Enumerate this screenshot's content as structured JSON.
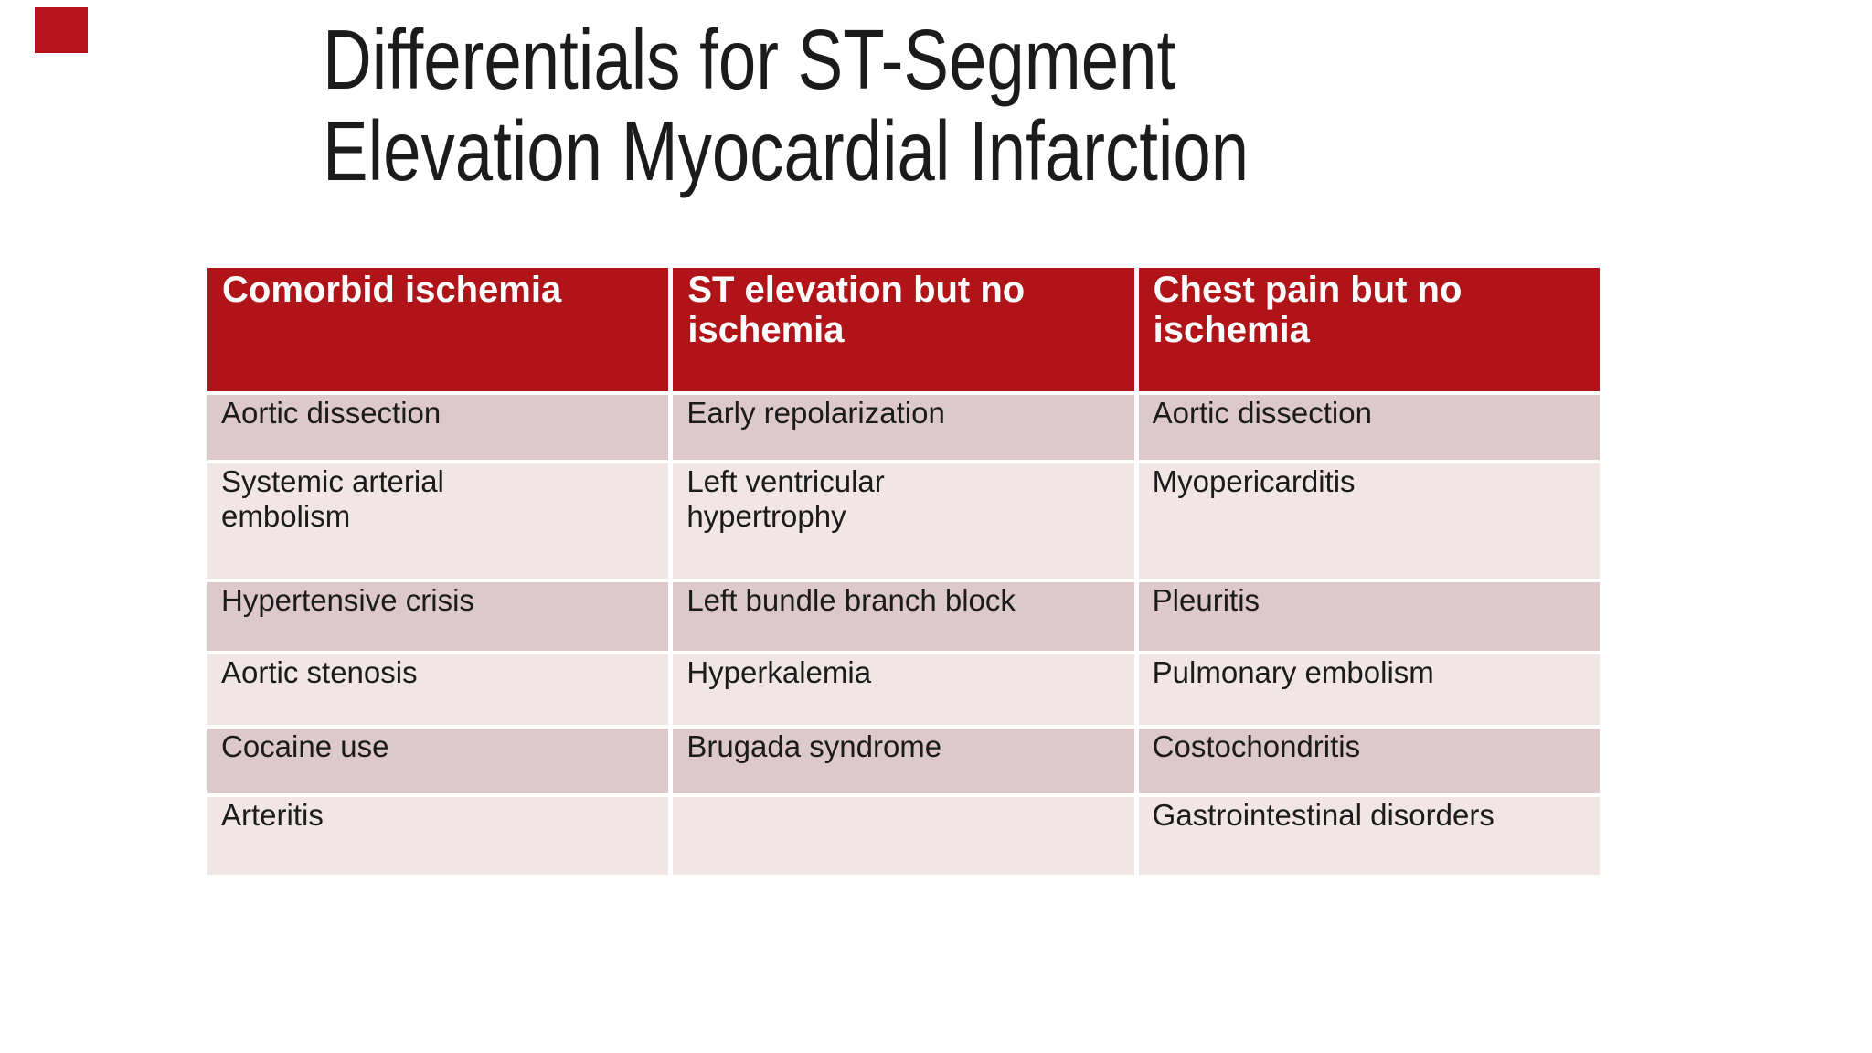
{
  "slide": {
    "title": "Differentials for ST-Segment\nElevation Myocardial Infarction",
    "background_color": "#ffffff",
    "corner_marker_color": "#b5121b"
  },
  "table": {
    "headers": [
      "Comorbid ischemia",
      "ST elevation but no\nischemia",
      "Chest pain but no\nischemia"
    ],
    "rows": [
      [
        "Aortic dissection",
        "Early repolarization",
        "Aortic dissection"
      ],
      [
        "Systemic arterial\nembolism",
        "Left ventricular\nhypertrophy",
        "Myopericarditis"
      ],
      [
        "Hypertensive crisis",
        "Left bundle branch block",
        "Pleuritis"
      ],
      [
        "Aortic stenosis",
        "Hyperkalemia",
        "Pulmonary embolism"
      ],
      [
        "Cocaine use",
        "Brugada syndrome",
        "Costochondritis"
      ],
      [
        "Arteritis",
        "",
        "Gastrointestinal disorders"
      ]
    ],
    "colors": {
      "header_bg": "#b01418",
      "header_text": "#ffffff",
      "row_dark_bg": "#ddc9cb",
      "row_light_bg": "#f1e5e6",
      "body_text": "#1b1b1b"
    }
  }
}
